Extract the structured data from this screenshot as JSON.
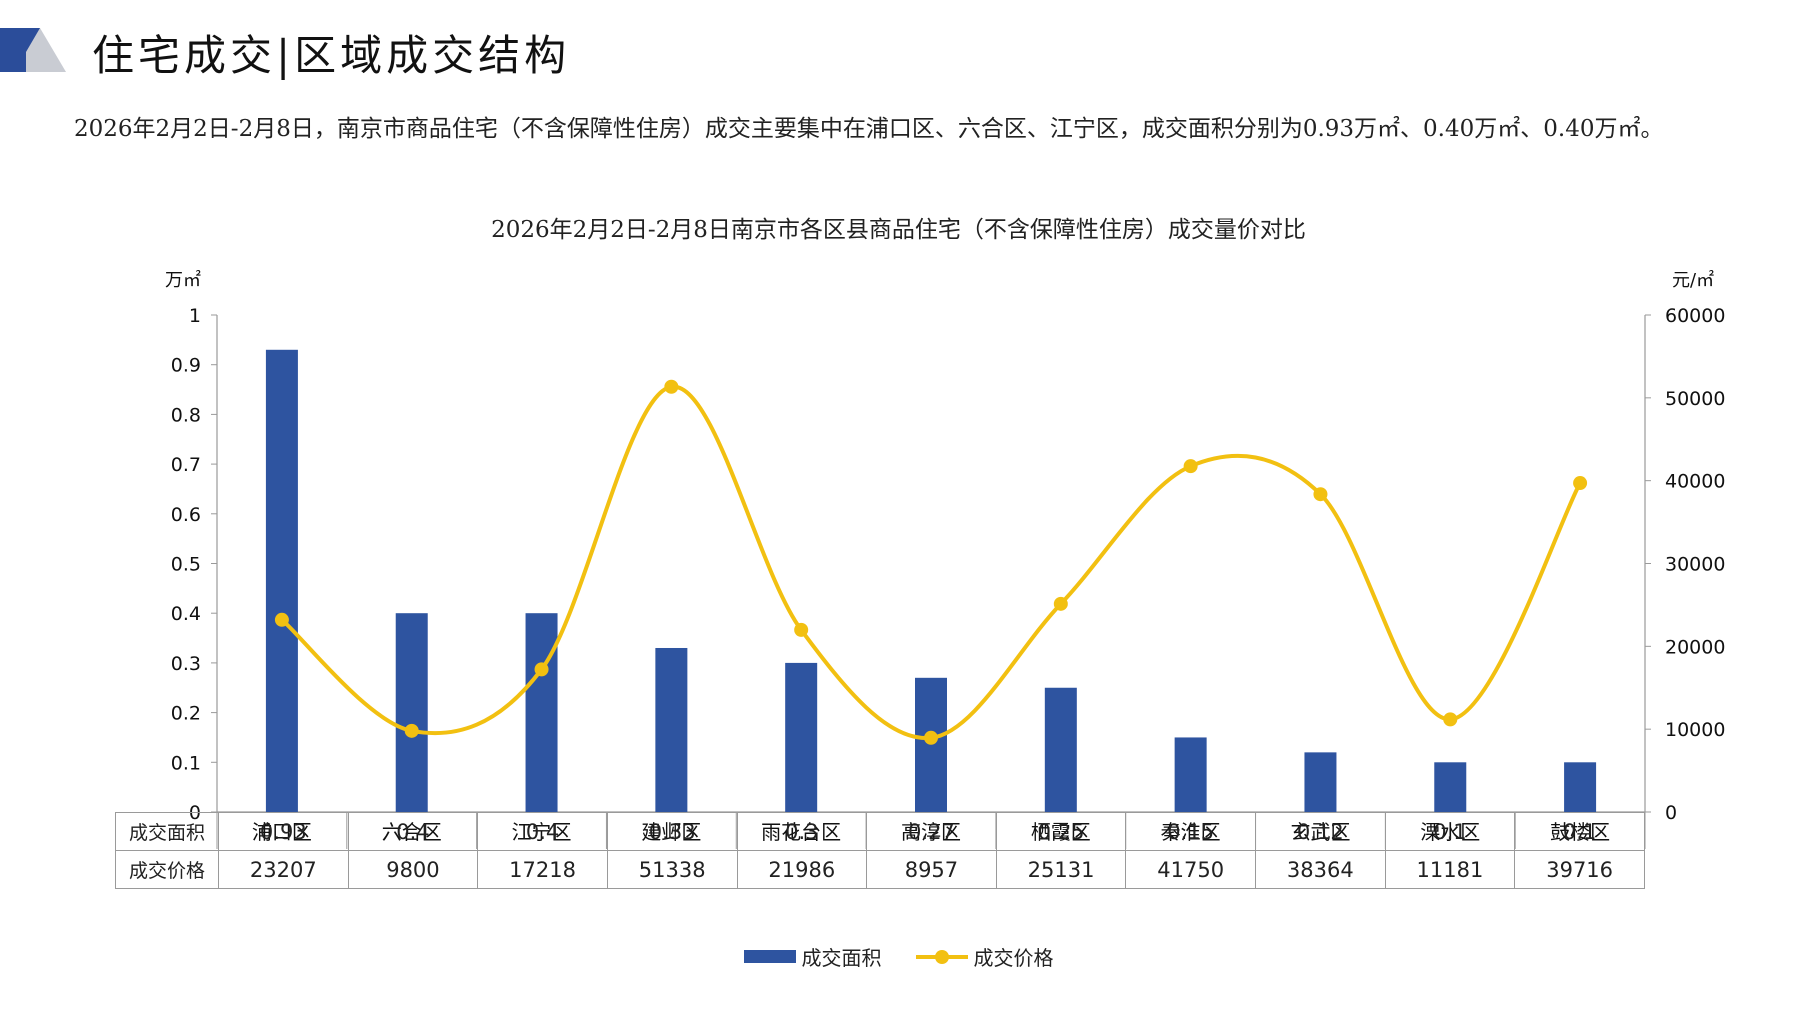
{
  "header": {
    "title": "住宅成交|区域成交结构",
    "summary": "2026年2月2日-2月8日，南京市商品住宅（不含保障性住房）成交主要集中在浦口区、六合区、江宁区，成交面积分别为0.93万㎡、0.40万㎡、0.40万㎡。"
  },
  "colors": {
    "bar": "#2e54a0",
    "line": "#f2c011",
    "axis": "#9a9a9a",
    "logo_dark": "#2b4d9a",
    "logo_light": "#c9ccd3"
  },
  "chart_data": {
    "type": "bar",
    "title": "2026年2月2日-2月8日南京市各区县商品住宅（不含保障性住房）成交量价对比",
    "categories": [
      "浦口区",
      "六合区",
      "江宁区",
      "建邺区",
      "雨花台区",
      "高淳区",
      "栖霞区",
      "秦淮区",
      "玄武区",
      "溧水区",
      "鼓楼区"
    ],
    "series": [
      {
        "name": "成交面积",
        "type": "bar",
        "axis": "left",
        "values": [
          0.93,
          0.4,
          0.4,
          0.33,
          0.3,
          0.27,
          0.25,
          0.15,
          0.12,
          0.1,
          0.1
        ]
      },
      {
        "name": "成交价格",
        "type": "line",
        "axis": "right",
        "smooth": true,
        "values": [
          23207,
          9800,
          17218,
          51338,
          21986,
          8957,
          25131,
          41750,
          38364,
          11181,
          39716
        ]
      }
    ],
    "ylabel_left": "万㎡",
    "ylabel_right": "元/㎡",
    "ylim_left": [
      0,
      1
    ],
    "ylim_right": [
      0,
      60000
    ],
    "yticks_left": [
      "0",
      "0.1",
      "0.2",
      "0.3",
      "0.4",
      "0.5",
      "0.6",
      "0.7",
      "0.8",
      "0.9",
      "1"
    ],
    "yticks_right": [
      "0",
      "10000",
      "20000",
      "30000",
      "40000",
      "50000",
      "60000"
    ],
    "grid": false,
    "legend": "bottom",
    "data_table": true
  }
}
